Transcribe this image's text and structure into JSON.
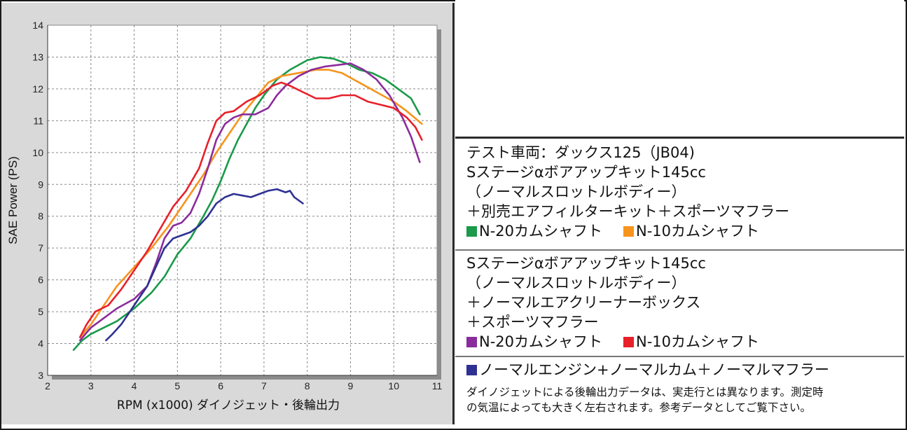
{
  "colors": {
    "green": "#1a9a4a",
    "orange": "#f7941d",
    "purple": "#8b2c9c",
    "red": "#e8202a",
    "blue": "#2e3192",
    "plot_bg": "#ffffff",
    "panel_bg": "#d9d9d9"
  },
  "legend": {
    "block1": {
      "title": "テスト車両：ダックス125（JB04)",
      "line2": "Sステージαボアアップキット145cc",
      "line3": "（ノーマルスロットルボディー）",
      "line4": "＋別売エアフィルターキット＋スポーツマフラー",
      "item_a": "N-20カムシャフト",
      "item_b": "N-10カムシャフト"
    },
    "block2": {
      "line1": "Sステージαボアアップキット145cc",
      "line2": "（ノーマルスロットルボディー）",
      "line3": "＋ノーマルエアクリーナーボックス",
      "line4": "＋スポーツマフラー",
      "item_a": "N-20カムシャフト",
      "item_b": "N-10カムシャフト"
    },
    "block3": {
      "item": "ノーマルエンジン+ノーマルカム＋ノーマルマフラー",
      "note1": "ダイノジェットによる後輪出力データは、実走行とは異なります。測定時",
      "note2": "の気温によっても大きく左右されます。参考データとしてご覧下さい。"
    }
  },
  "chart_data": {
    "type": "line",
    "xlabel": "RPM (x1000) ダイノジェット・後輪出力",
    "ylabel": "SAE Power (PS)",
    "xlim": [
      2,
      11
    ],
    "ylim": [
      3,
      14
    ],
    "xticks": [
      2,
      3,
      4,
      5,
      6,
      7,
      8,
      9,
      10,
      11
    ],
    "yticks": [
      3,
      4,
      5,
      6,
      7,
      8,
      9,
      10,
      11,
      12,
      13,
      14
    ],
    "grid": true,
    "series": [
      {
        "name": "N-20カムシャフト (別売エアフィルターキット)",
        "color": "green",
        "points": [
          [
            2.6,
            3.8
          ],
          [
            2.8,
            4.1
          ],
          [
            3.0,
            4.3
          ],
          [
            3.3,
            4.5
          ],
          [
            3.6,
            4.7
          ],
          [
            4.0,
            5.1
          ],
          [
            4.4,
            5.6
          ],
          [
            4.7,
            6.1
          ],
          [
            5.0,
            6.8
          ],
          [
            5.3,
            7.3
          ],
          [
            5.6,
            8.0
          ],
          [
            5.8,
            8.5
          ],
          [
            6.0,
            9.1
          ],
          [
            6.2,
            9.8
          ],
          [
            6.4,
            10.4
          ],
          [
            6.6,
            10.9
          ],
          [
            6.8,
            11.4
          ],
          [
            7.0,
            11.8
          ],
          [
            7.3,
            12.3
          ],
          [
            7.6,
            12.6
          ],
          [
            8.0,
            12.9
          ],
          [
            8.3,
            13.0
          ],
          [
            8.6,
            12.95
          ],
          [
            8.9,
            12.8
          ],
          [
            9.2,
            12.6
          ],
          [
            9.5,
            12.5
          ],
          [
            9.8,
            12.3
          ],
          [
            10.1,
            12.0
          ],
          [
            10.4,
            11.7
          ],
          [
            10.6,
            11.2
          ]
        ]
      },
      {
        "name": "N-10カムシャフト (別売エアフィルターキット)",
        "color": "orange",
        "points": [
          [
            2.75,
            4.2
          ],
          [
            3.0,
            4.6
          ],
          [
            3.3,
            5.2
          ],
          [
            3.6,
            5.8
          ],
          [
            4.0,
            6.4
          ],
          [
            4.4,
            7.0
          ],
          [
            4.8,
            7.7
          ],
          [
            5.2,
            8.5
          ],
          [
            5.6,
            9.3
          ],
          [
            5.9,
            10.0
          ],
          [
            6.2,
            10.6
          ],
          [
            6.5,
            11.2
          ],
          [
            6.8,
            11.7
          ],
          [
            7.1,
            12.2
          ],
          [
            7.4,
            12.4
          ],
          [
            7.8,
            12.5
          ],
          [
            8.2,
            12.6
          ],
          [
            8.5,
            12.6
          ],
          [
            8.8,
            12.5
          ],
          [
            9.2,
            12.2
          ],
          [
            9.6,
            11.9
          ],
          [
            10.0,
            11.6
          ],
          [
            10.3,
            11.3
          ],
          [
            10.65,
            10.9
          ]
        ]
      },
      {
        "name": "N-20カムシャフト (ノーマルエアクリーナーボックス)",
        "color": "purple",
        "points": [
          [
            2.75,
            4.1
          ],
          [
            3.0,
            4.5
          ],
          [
            3.3,
            4.8
          ],
          [
            3.6,
            5.1
          ],
          [
            4.0,
            5.4
          ],
          [
            4.3,
            5.8
          ],
          [
            4.5,
            6.5
          ],
          [
            4.7,
            7.3
          ],
          [
            4.9,
            7.7
          ],
          [
            5.1,
            7.8
          ],
          [
            5.3,
            8.1
          ],
          [
            5.5,
            8.7
          ],
          [
            5.7,
            9.5
          ],
          [
            5.9,
            10.4
          ],
          [
            6.1,
            10.9
          ],
          [
            6.3,
            11.1
          ],
          [
            6.5,
            11.2
          ],
          [
            6.8,
            11.2
          ],
          [
            7.1,
            11.4
          ],
          [
            7.3,
            11.8
          ],
          [
            7.5,
            12.1
          ],
          [
            7.8,
            12.4
          ],
          [
            8.1,
            12.6
          ],
          [
            8.4,
            12.7
          ],
          [
            8.7,
            12.75
          ],
          [
            9.0,
            12.8
          ],
          [
            9.3,
            12.6
          ],
          [
            9.6,
            12.3
          ],
          [
            9.9,
            11.8
          ],
          [
            10.2,
            11.1
          ],
          [
            10.4,
            10.5
          ],
          [
            10.6,
            9.7
          ]
        ]
      },
      {
        "name": "N-10カムシャフト (ノーマルエアクリーナーボックス)",
        "color": "red",
        "points": [
          [
            2.75,
            4.2
          ],
          [
            2.9,
            4.6
          ],
          [
            3.1,
            5.0
          ],
          [
            3.4,
            5.2
          ],
          [
            3.7,
            5.7
          ],
          [
            4.0,
            6.3
          ],
          [
            4.3,
            6.9
          ],
          [
            4.6,
            7.6
          ],
          [
            4.9,
            8.3
          ],
          [
            5.2,
            8.8
          ],
          [
            5.5,
            9.5
          ],
          [
            5.7,
            10.3
          ],
          [
            5.9,
            11.0
          ],
          [
            6.1,
            11.25
          ],
          [
            6.3,
            11.3
          ],
          [
            6.6,
            11.6
          ],
          [
            6.9,
            11.8
          ],
          [
            7.2,
            12.1
          ],
          [
            7.4,
            12.2
          ],
          [
            7.6,
            12.1
          ],
          [
            7.9,
            11.9
          ],
          [
            8.2,
            11.7
          ],
          [
            8.5,
            11.7
          ],
          [
            8.8,
            11.8
          ],
          [
            9.1,
            11.8
          ],
          [
            9.4,
            11.6
          ],
          [
            9.7,
            11.5
          ],
          [
            10.0,
            11.4
          ],
          [
            10.3,
            11.1
          ],
          [
            10.5,
            10.8
          ],
          [
            10.65,
            10.4
          ]
        ]
      },
      {
        "name": "ノーマルエンジン+ノーマルカム＋ノーマルマフラー",
        "color": "blue",
        "points": [
          [
            3.35,
            4.1
          ],
          [
            3.5,
            4.3
          ],
          [
            3.7,
            4.6
          ],
          [
            3.9,
            5.0
          ],
          [
            4.1,
            5.4
          ],
          [
            4.3,
            5.8
          ],
          [
            4.5,
            6.4
          ],
          [
            4.7,
            7.0
          ],
          [
            4.9,
            7.3
          ],
          [
            5.1,
            7.4
          ],
          [
            5.3,
            7.5
          ],
          [
            5.5,
            7.7
          ],
          [
            5.7,
            8.0
          ],
          [
            5.9,
            8.4
          ],
          [
            6.1,
            8.6
          ],
          [
            6.3,
            8.7
          ],
          [
            6.5,
            8.65
          ],
          [
            6.7,
            8.6
          ],
          [
            6.9,
            8.7
          ],
          [
            7.1,
            8.8
          ],
          [
            7.3,
            8.85
          ],
          [
            7.5,
            8.75
          ],
          [
            7.6,
            8.8
          ],
          [
            7.7,
            8.6
          ],
          [
            7.8,
            8.5
          ],
          [
            7.9,
            8.4
          ]
        ]
      }
    ]
  }
}
